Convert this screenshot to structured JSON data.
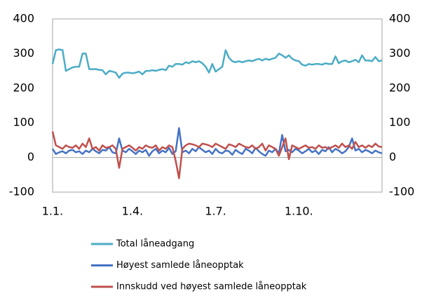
{
  "chart_data": {
    "type": "line",
    "categories": [
      "1.1.",
      null,
      null,
      null,
      null,
      null,
      null,
      null,
      null,
      null,
      null,
      null,
      null,
      null,
      null,
      null,
      null,
      null,
      null,
      null,
      null,
      null,
      null,
      null,
      "1.4.",
      null,
      null,
      null,
      null,
      null,
      null,
      null,
      null,
      null,
      null,
      null,
      null,
      null,
      null,
      null,
      null,
      null,
      null,
      null,
      null,
      null,
      null,
      null,
      null,
      "1.7.",
      null,
      null,
      null,
      null,
      null,
      null,
      null,
      null,
      null,
      null,
      null,
      null,
      null,
      null,
      null,
      null,
      null,
      null,
      null,
      null,
      null,
      null,
      null,
      null,
      "1.10.",
      null,
      null,
      null,
      null,
      null,
      null,
      null,
      null,
      null,
      null,
      null,
      null,
      null,
      null,
      null,
      null,
      null,
      null,
      null,
      null,
      null,
      null,
      null,
      null,
      null
    ],
    "series": [
      {
        "name": "Total låneadgang",
        "color": "#4bacc6",
        "values": [
          270,
          310,
          312,
          310,
          250,
          255,
          260,
          262,
          262,
          300,
          300,
          255,
          255,
          255,
          253,
          252,
          240,
          250,
          248,
          245,
          230,
          242,
          245,
          245,
          243,
          245,
          248,
          240,
          250,
          250,
          252,
          250,
          253,
          255,
          252,
          265,
          262,
          270,
          270,
          268,
          275,
          272,
          278,
          275,
          278,
          272,
          262,
          245,
          270,
          248,
          255,
          262,
          310,
          288,
          278,
          275,
          278,
          275,
          278,
          280,
          278,
          282,
          285,
          280,
          285,
          282,
          285,
          288,
          300,
          295,
          288,
          295,
          285,
          280,
          278,
          268,
          265,
          270,
          268,
          270,
          270,
          268,
          272,
          270,
          270,
          292,
          272,
          278,
          280,
          275,
          278,
          282,
          275,
          295,
          280,
          280,
          278,
          290,
          278,
          280
        ]
      },
      {
        "name": "Høyest samlede låneopptak",
        "color": "#4472c4",
        "values": [
          25,
          10,
          15,
          18,
          12,
          20,
          22,
          15,
          18,
          10,
          20,
          15,
          25,
          18,
          12,
          22,
          20,
          30,
          15,
          12,
          55,
          20,
          15,
          25,
          18,
          10,
          20,
          15,
          22,
          5,
          18,
          25,
          12,
          20,
          15,
          28,
          10,
          18,
          85,
          15,
          20,
          12,
          25,
          18,
          30,
          22,
          15,
          20,
          10,
          25,
          15,
          12,
          20,
          18,
          8,
          22,
          15,
          10,
          25,
          20,
          12,
          28,
          18,
          10,
          5,
          20,
          15,
          25,
          12,
          65,
          18,
          22,
          15,
          25,
          20,
          12,
          18,
          25,
          15,
          20,
          10,
          22,
          18,
          30,
          15,
          25,
          20,
          12,
          18,
          30,
          55,
          20,
          25,
          15,
          22,
          18,
          12,
          20,
          15,
          12
        ]
      },
      {
        "name": "Innskudd ved høyest samlede låneopptak",
        "color": "#c0504d",
        "values": [
          75,
          35,
          30,
          25,
          35,
          30,
          28,
          35,
          25,
          40,
          30,
          55,
          25,
          30,
          20,
          35,
          28,
          30,
          35,
          25,
          -30,
          25,
          30,
          35,
          28,
          20,
          30,
          25,
          35,
          30,
          28,
          35,
          20,
          30,
          25,
          35,
          30,
          -10,
          -60,
          25,
          35,
          40,
          38,
          35,
          30,
          40,
          38,
          35,
          30,
          40,
          35,
          30,
          25,
          38,
          35,
          30,
          40,
          35,
          30,
          28,
          35,
          25,
          30,
          40,
          20,
          35,
          30,
          25,
          5,
          30,
          55,
          -5,
          35,
          30,
          25,
          30,
          35,
          28,
          30,
          25,
          35,
          28,
          30,
          25,
          30,
          35,
          28,
          40,
          30,
          35,
          25,
          45,
          30,
          35,
          28,
          35,
          30,
          40,
          32,
          30
        ]
      }
    ],
    "ylim": [
      -100,
      400
    ],
    "yticks": [
      -100,
      0,
      100,
      200,
      300,
      400
    ],
    "zero_line": true
  }
}
